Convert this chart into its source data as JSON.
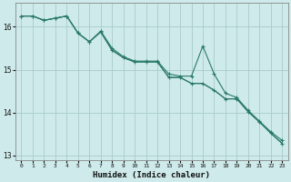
{
  "xlabel": "Humidex (Indice chaleur)",
  "bg_color": "#ceeaea",
  "grid_color": "#aacccc",
  "line_color": "#2a7a6a",
  "x_values": [
    0,
    1,
    2,
    3,
    4,
    5,
    6,
    7,
    8,
    9,
    10,
    11,
    12,
    13,
    14,
    15,
    16,
    17,
    18,
    19,
    20,
    21,
    22,
    23
  ],
  "series1": [
    16.25,
    16.25,
    16.15,
    16.2,
    16.25,
    15.85,
    15.65,
    15.9,
    15.5,
    15.3,
    15.2,
    15.2,
    15.2,
    14.9,
    14.85,
    14.85,
    15.55,
    14.9,
    14.45,
    14.35,
    14.05,
    13.8,
    13.55,
    13.35
  ],
  "series2": [
    16.25,
    16.25,
    16.15,
    16.2,
    16.25,
    15.85,
    15.65,
    15.88,
    15.45,
    15.28,
    15.18,
    15.18,
    15.18,
    14.82,
    14.82,
    14.68,
    14.68,
    14.52,
    14.32,
    14.32,
    14.02,
    13.78,
    13.52,
    13.28
  ],
  "series3": [
    16.25,
    16.25,
    16.15,
    16.2,
    16.25,
    15.85,
    15.65,
    15.88,
    15.45,
    15.28,
    15.18,
    15.18,
    15.18,
    14.82,
    14.82,
    14.68,
    14.68,
    14.52,
    14.32,
    14.32,
    14.02,
    13.78,
    13.52,
    13.28
  ],
  "ylim": [
    12.9,
    16.55
  ],
  "yticks": [
    13,
    14,
    15,
    16
  ],
  "xlim": [
    -0.5,
    23.5
  ],
  "xtick_labels": [
    "0",
    "1",
    "2",
    "3",
    "4",
    "5",
    "6",
    "7",
    "8",
    "9",
    "10",
    "11",
    "12",
    "13",
    "14",
    "15",
    "16",
    "17",
    "18",
    "19",
    "20",
    "21",
    "22",
    "23"
  ]
}
